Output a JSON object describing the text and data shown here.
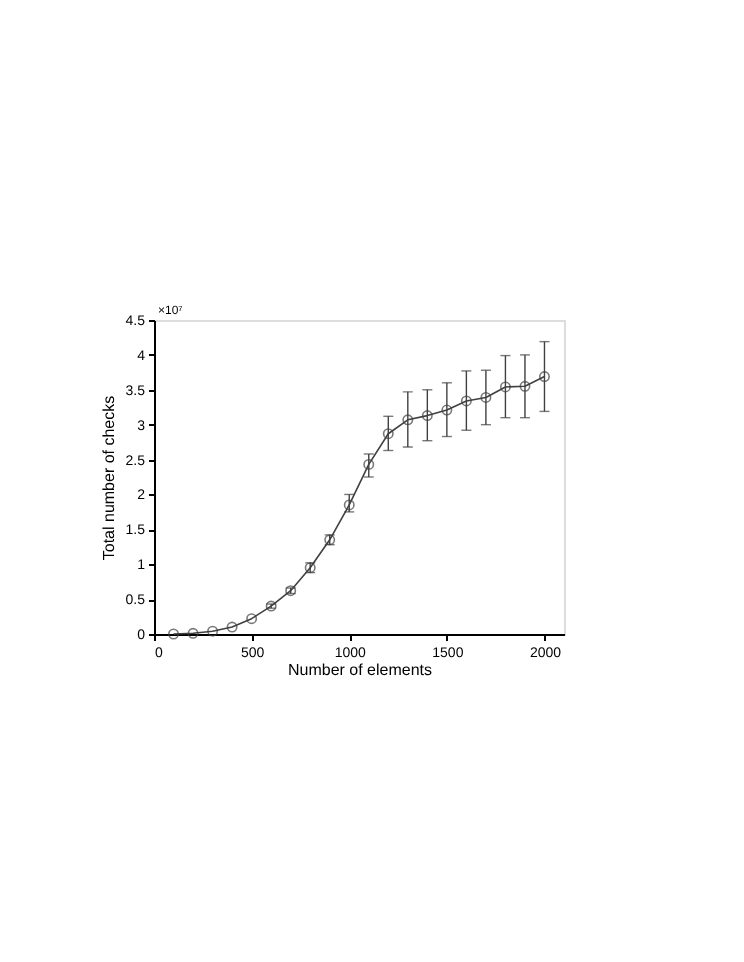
{
  "chart_data": {
    "type": "line",
    "xlabel": "Number of elements",
    "ylabel": "Total number of checks",
    "annotations": [
      "×10⁷"
    ],
    "x": [
      100,
      200,
      300,
      400,
      500,
      600,
      700,
      800,
      900,
      1000,
      1100,
      1200,
      1300,
      1400,
      1500,
      1600,
      1700,
      1800,
      1900,
      2000
    ],
    "series": [
      {
        "color": "#404040",
        "values": [
          0,
          0.01,
          0.04,
          0.1,
          0.22,
          0.4,
          0.62,
          0.95,
          1.35,
          1.85,
          2.43,
          2.87,
          3.07,
          3.13,
          3.21,
          3.34,
          3.39,
          3.54,
          3.55,
          3.69
        ],
        "errors": [
          null,
          null,
          null,
          null,
          null,
          [
            0.37,
            0.43
          ],
          [
            0.58,
            0.66
          ],
          [
            0.88,
            1.02
          ],
          [
            1.28,
            1.42
          ],
          [
            1.75,
            2.0
          ],
          [
            2.25,
            2.58
          ],
          [
            2.63,
            3.12
          ],
          [
            2.68,
            3.47
          ],
          [
            2.77,
            3.5
          ],
          [
            2.83,
            3.6
          ],
          [
            2.92,
            3.77
          ],
          [
            3.0,
            3.78
          ],
          [
            3.1,
            3.99
          ],
          [
            3.1,
            4.0
          ],
          [
            3.19,
            4.19
          ]
        ]
      }
    ],
    "xlim": [
      0,
      2100
    ],
    "xticks": [
      0,
      500,
      1000,
      1500,
      2000
    ],
    "ylim": [
      0,
      4.5
    ],
    "yticks": [
      0,
      0.5,
      1,
      1.5,
      2,
      2.5,
      3,
      3.5,
      4,
      4.5
    ],
    "marker": "circle",
    "line_style": "solid",
    "grid": false
  }
}
